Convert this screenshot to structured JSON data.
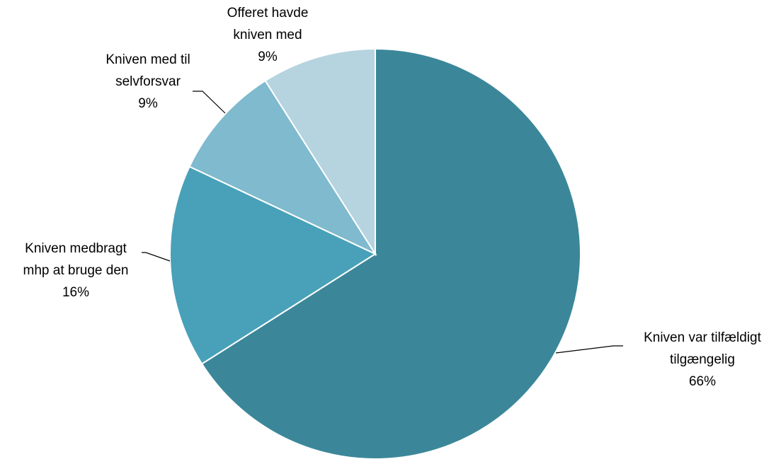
{
  "chart_data": {
    "type": "pie",
    "title": "",
    "start_angle_deg": 0,
    "direction": "clockwise",
    "slices": [
      {
        "label_lines": [
          "Kniven var tilfældigt",
          "tilgængelig"
        ],
        "value_label": "66%",
        "value": 66,
        "color": "#3b8799"
      },
      {
        "label_lines": [
          "Kniven medbragt",
          "mhp at bruge den"
        ],
        "value_label": "16%",
        "value": 16,
        "color": "#48a1b9"
      },
      {
        "label_lines": [
          "Kniven med til",
          "selvforsvar"
        ],
        "value_label": "9%",
        "value": 9,
        "color": "#7fbace"
      },
      {
        "label_lines": [
          "Offeret havde",
          "kniven med"
        ],
        "value_label": "9%",
        "value": 9,
        "color": "#b6d4df"
      }
    ]
  }
}
